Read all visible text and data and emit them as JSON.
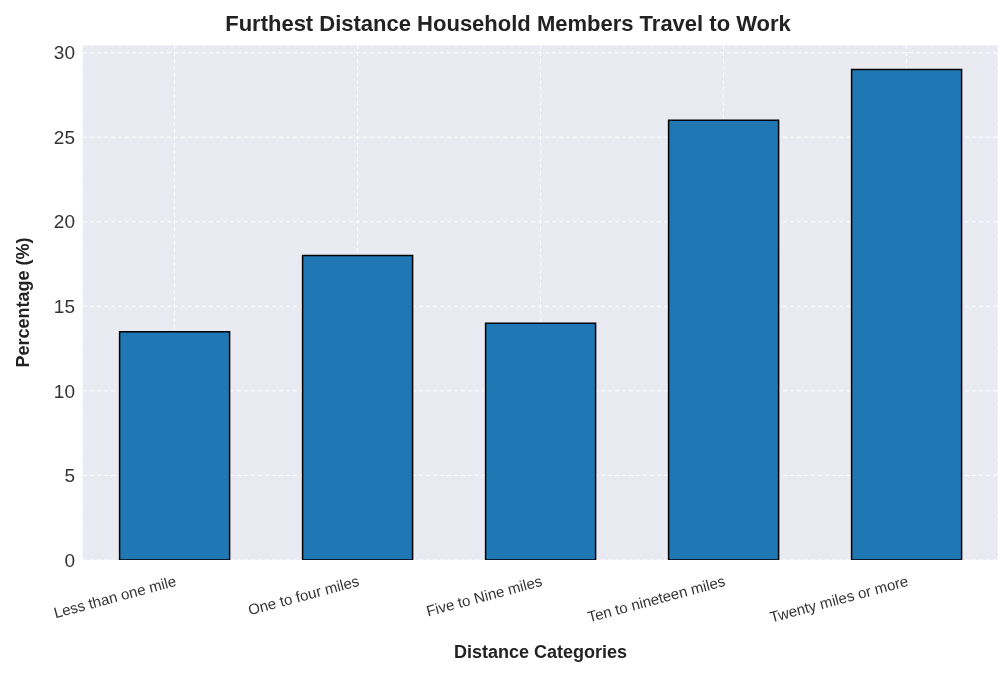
{
  "chart_data": {
    "type": "bar",
    "title": "Furthest Distance Household Members Travel to Work",
    "xlabel": "Distance Categories",
    "ylabel": "Percentage (%)",
    "categories": [
      "Less than one mile",
      "One to four miles",
      "Five to Nine miles",
      "Ten to nineteen miles",
      "Twenty miles or more"
    ],
    "values": [
      13.5,
      18,
      14,
      26,
      29
    ],
    "color": "#1f77b4",
    "ylim": [
      0,
      30.45
    ],
    "yticks": [
      0,
      5,
      10,
      15,
      20,
      25,
      30
    ],
    "grid": true
  }
}
